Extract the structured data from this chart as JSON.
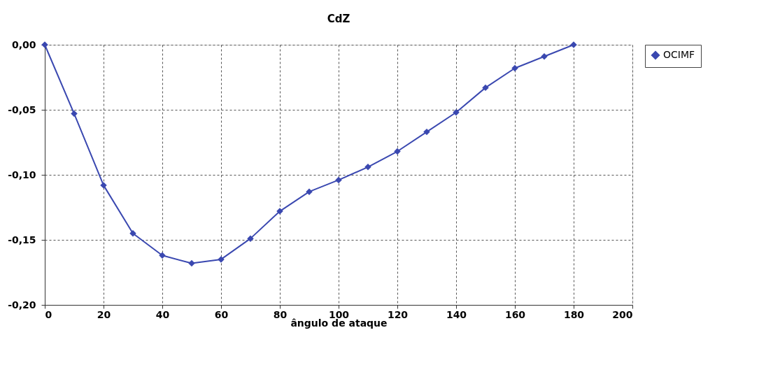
{
  "chart_data": {
    "type": "line",
    "title": "CdZ",
    "xlabel": "ângulo de ataque",
    "x": [
      0,
      10,
      20,
      30,
      40,
      50,
      60,
      70,
      80,
      90,
      100,
      110,
      120,
      130,
      140,
      150,
      160,
      170,
      180
    ],
    "series": [
      {
        "name": "OCIMF",
        "color": "#3a48b0",
        "values": [
          0,
          -0.053,
          -0.108,
          -0.145,
          -0.162,
          -0.168,
          -0.165,
          -0.149,
          -0.128,
          -0.113,
          -0.104,
          -0.094,
          -0.082,
          -0.067,
          -0.052,
          -0.033,
          -0.018,
          -0.009,
          0
        ]
      }
    ],
    "xlim": [
      0,
      200
    ],
    "xticks": [
      0,
      20,
      40,
      60,
      80,
      100,
      120,
      140,
      160,
      180,
      200
    ],
    "ylim": [
      -0.2,
      0
    ],
    "yticks": [
      {
        "value": -0.2,
        "label": "-0,20"
      },
      {
        "value": -0.15,
        "label": "-0,15"
      },
      {
        "value": -0.1,
        "label": "-0,10"
      },
      {
        "value": -0.05,
        "label": "-0,05"
      },
      {
        "value": 0,
        "label": "0,00"
      }
    ],
    "grid": true,
    "legend": "right",
    "marker": "diamond",
    "line_style": "solid"
  }
}
